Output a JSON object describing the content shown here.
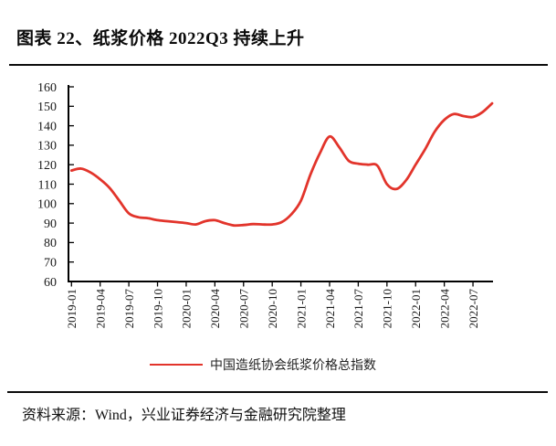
{
  "title": "图表 22、纸浆价格 2022Q3 持续上升",
  "source_note": "资料来源：Wind，兴业证券经济与金融研究院整理",
  "colors": {
    "line": "#e2342b",
    "axis": "#000000",
    "text": "#1a1a1a",
    "rule": "#0b0b0b"
  },
  "legend": {
    "label": "中国造纸协会纸浆价格总指数"
  },
  "chart_data": {
    "type": "line",
    "title": "图表 22、纸浆价格 2022Q3 持续上升",
    "xlabel": "",
    "ylabel": "",
    "ylim": [
      60,
      160
    ],
    "y_ticks": [
      60,
      70,
      80,
      90,
      100,
      110,
      120,
      130,
      140,
      150,
      160
    ],
    "x_tick_every": 3,
    "x_tick_labels": [
      "2019-01",
      "2019-04",
      "2019-07",
      "2019-10",
      "2020-01",
      "2020-04",
      "2020-07",
      "2020-10",
      "2021-01",
      "2021-04",
      "2021-07",
      "2021-10",
      "2022-01",
      "2022-04",
      "2022-07"
    ],
    "grid": false,
    "legend_position": "bottom-center",
    "x": [
      "2019-01",
      "2019-02",
      "2019-03",
      "2019-04",
      "2019-05",
      "2019-06",
      "2019-07",
      "2019-08",
      "2019-09",
      "2019-10",
      "2019-11",
      "2019-12",
      "2020-01",
      "2020-02",
      "2020-03",
      "2020-04",
      "2020-05",
      "2020-06",
      "2020-07",
      "2020-08",
      "2020-09",
      "2020-10",
      "2020-11",
      "2020-12",
      "2021-01",
      "2021-02",
      "2021-03",
      "2021-04",
      "2021-05",
      "2021-06",
      "2021-07",
      "2021-08",
      "2021-09",
      "2021-10",
      "2021-11",
      "2021-12",
      "2022-01",
      "2022-02",
      "2022-03",
      "2022-04",
      "2022-05",
      "2022-06",
      "2022-07",
      "2022-08",
      "2022-09"
    ],
    "series": [
      {
        "name": "中国造纸协会纸浆价格总指数",
        "color": "#e2342b",
        "values": [
          117,
          118,
          116,
          112.5,
          108,
          101.5,
          95,
          93,
          92.5,
          91.5,
          91,
          90.5,
          90,
          89.3,
          91,
          91.5,
          90,
          88.8,
          89,
          89.5,
          89.3,
          89.3,
          90.5,
          94.5,
          101.5,
          115,
          126,
          134.5,
          129,
          122,
          120.5,
          120,
          119.5,
          110,
          107.5,
          112,
          120,
          128,
          137,
          143,
          146,
          145,
          144.5,
          147,
          151.5
        ]
      }
    ]
  }
}
